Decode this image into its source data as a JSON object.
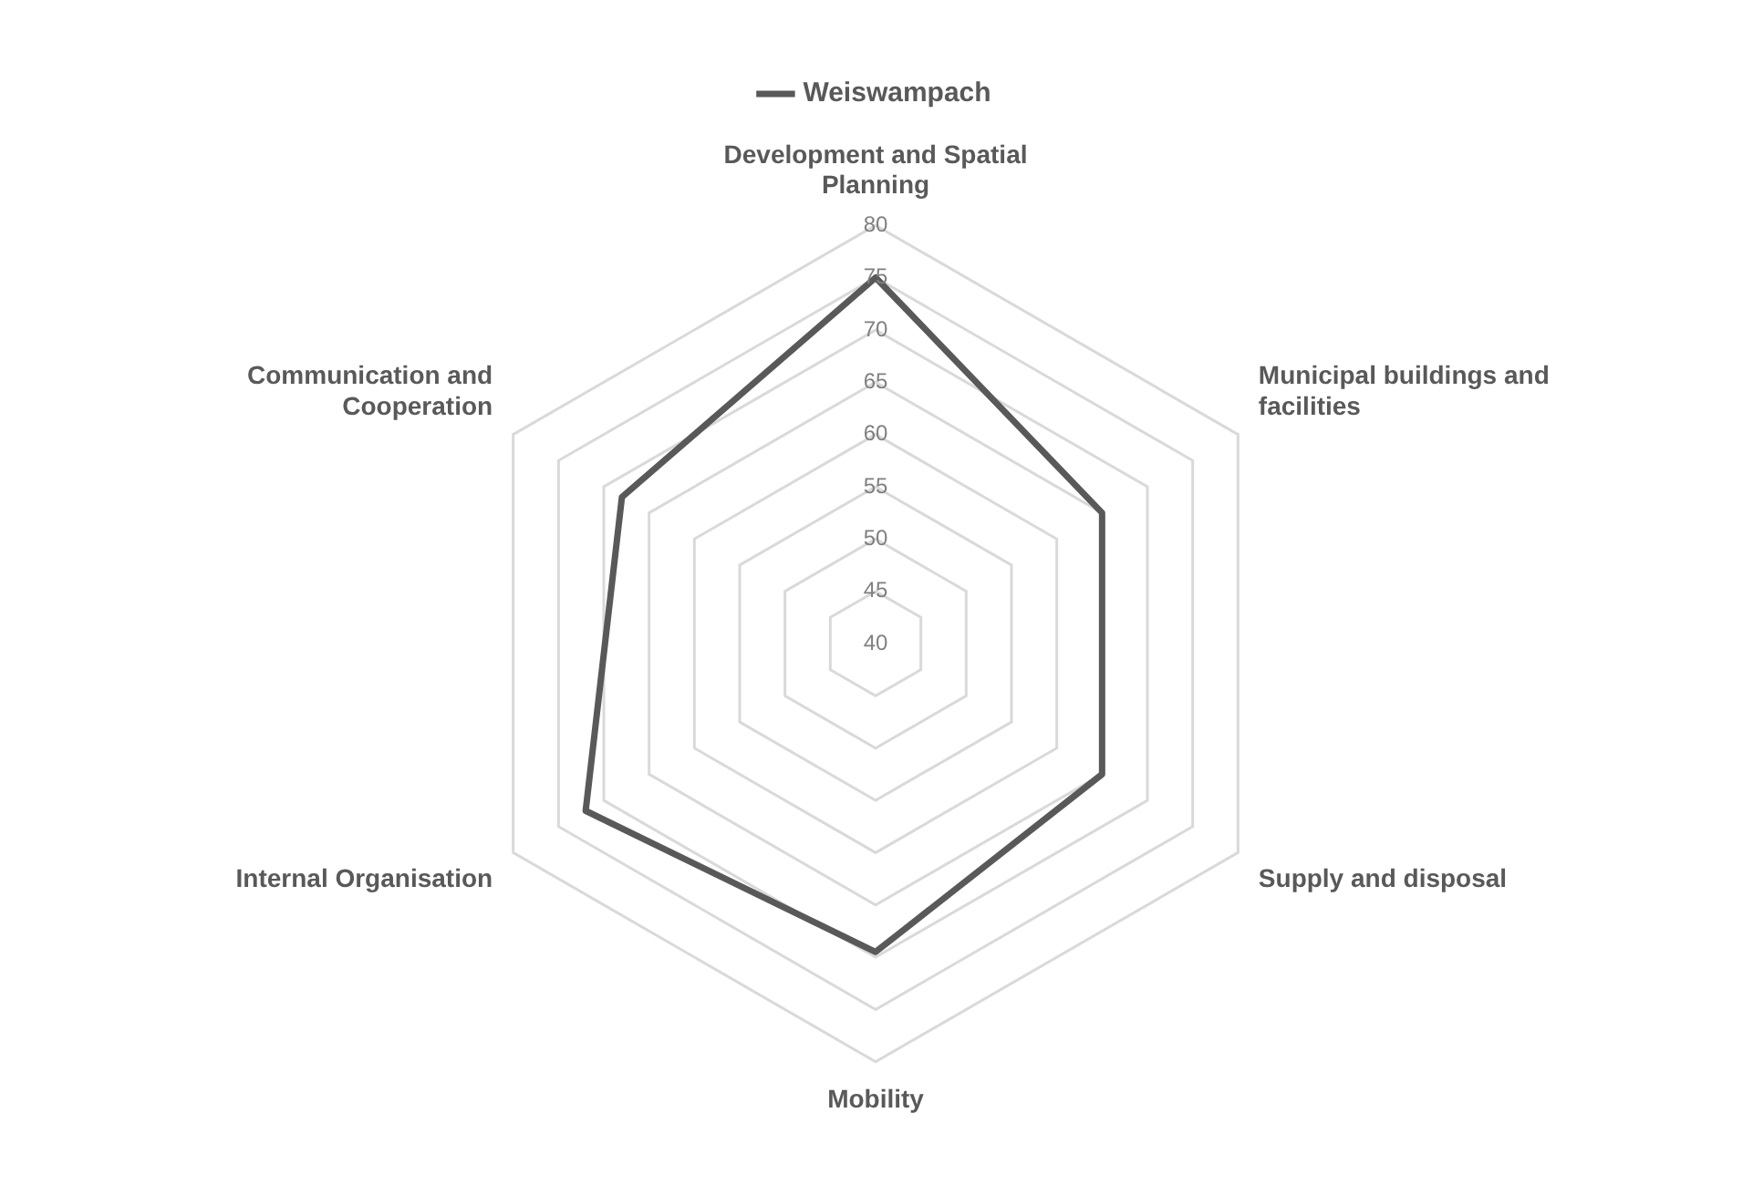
{
  "chart_data": {
    "type": "radar",
    "categories": [
      "Development and Spatial Planning",
      "Municipal buildings and facilities",
      "Supply and disposal",
      "Mobility",
      "Internal Organisation",
      "Communication and Cooperation"
    ],
    "series": [
      {
        "name": "Weiswampach",
        "color": "#595959",
        "values": [
          75,
          65,
          65,
          69.5,
          72,
          68
        ]
      }
    ],
    "ylim": [
      40,
      80
    ],
    "yticks": [
      40,
      45,
      50,
      55,
      60,
      65,
      70,
      75,
      80
    ],
    "grid": true,
    "legend": "top",
    "marker": "none"
  }
}
